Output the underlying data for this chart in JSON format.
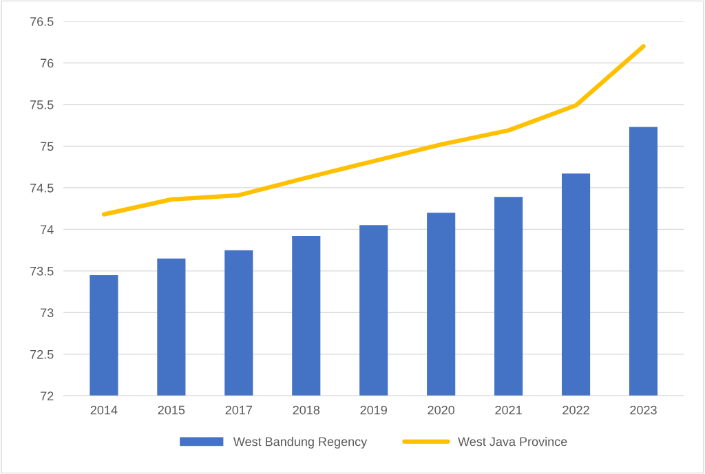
{
  "chart_data": {
    "type": "bar",
    "categories": [
      "2014",
      "2015",
      "2017",
      "2018",
      "2019",
      "2020",
      "2021",
      "2022",
      "2023"
    ],
    "series": [
      {
        "name": "West Bandung Regency",
        "color": "#4472c4",
        "values": [
          73.45,
          73.65,
          73.75,
          73.92,
          74.05,
          74.2,
          74.39,
          74.67,
          75.23
        ]
      },
      {
        "name": "West Java Province",
        "type": "line",
        "color": "#ffc000",
        "values": [
          74.18,
          74.36,
          74.41,
          74.62,
          74.82,
          75.02,
          75.19,
          75.49,
          76.2
        ]
      }
    ],
    "ylim": [
      72,
      76.5
    ],
    "yticks": [
      72,
      72.5,
      73,
      73.5,
      74,
      74.5,
      75,
      75.5,
      76,
      76.5
    ],
    "grid": "y",
    "legend": "bottom",
    "marker": "none",
    "line_style": "solid"
  }
}
